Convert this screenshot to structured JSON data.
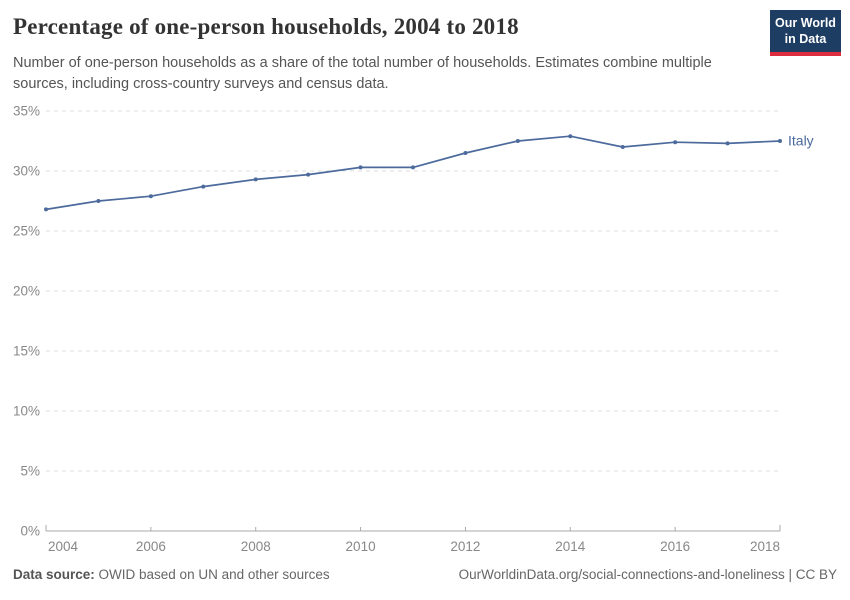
{
  "header": {
    "title": "Percentage of one-person households, 2004 to 2018",
    "subtitle": "Number of one-person households as a share of the total number of households. Estimates combine multiple sources, including cross-country surveys and census data.",
    "logo": {
      "line1": "Our World",
      "line2": "in Data",
      "bg_color": "#1d3d63",
      "stripe_color": "#dc2c3e"
    }
  },
  "chart_data": {
    "type": "line",
    "title": "Percentage of one-person households, 2004 to 2018",
    "x": [
      2004,
      2005,
      2006,
      2007,
      2008,
      2009,
      2010,
      2011,
      2012,
      2013,
      2014,
      2015,
      2016,
      2017,
      2018
    ],
    "series": [
      {
        "name": "Italy",
        "color": "#4c6a9c",
        "values": [
          26.8,
          27.5,
          27.9,
          28.7,
          29.3,
          29.7,
          30.3,
          30.3,
          31.5,
          32.5,
          32.9,
          32.0,
          32.4,
          32.3,
          32.5
        ]
      }
    ],
    "xlabel": "",
    "ylabel": "",
    "xlim": [
      2004,
      2018
    ],
    "ylim": [
      0,
      35
    ],
    "xticks": [
      2004,
      2006,
      2008,
      2010,
      2012,
      2014,
      2016,
      2018
    ],
    "yticks": [
      0,
      5,
      10,
      15,
      20,
      25,
      30,
      35
    ],
    "ytick_suffix": "%",
    "grid": "horizontal-dashed",
    "legend_position": "end-of-line",
    "colors": {
      "grid": "#dddddd",
      "axis": "#a9a9a9",
      "tick_label": "#888888"
    }
  },
  "footer": {
    "source_label": "Data source:",
    "source_text": " OWID based on UN and other sources",
    "link_text": "OurWorldinData.org/social-connections-and-loneliness | CC BY"
  }
}
